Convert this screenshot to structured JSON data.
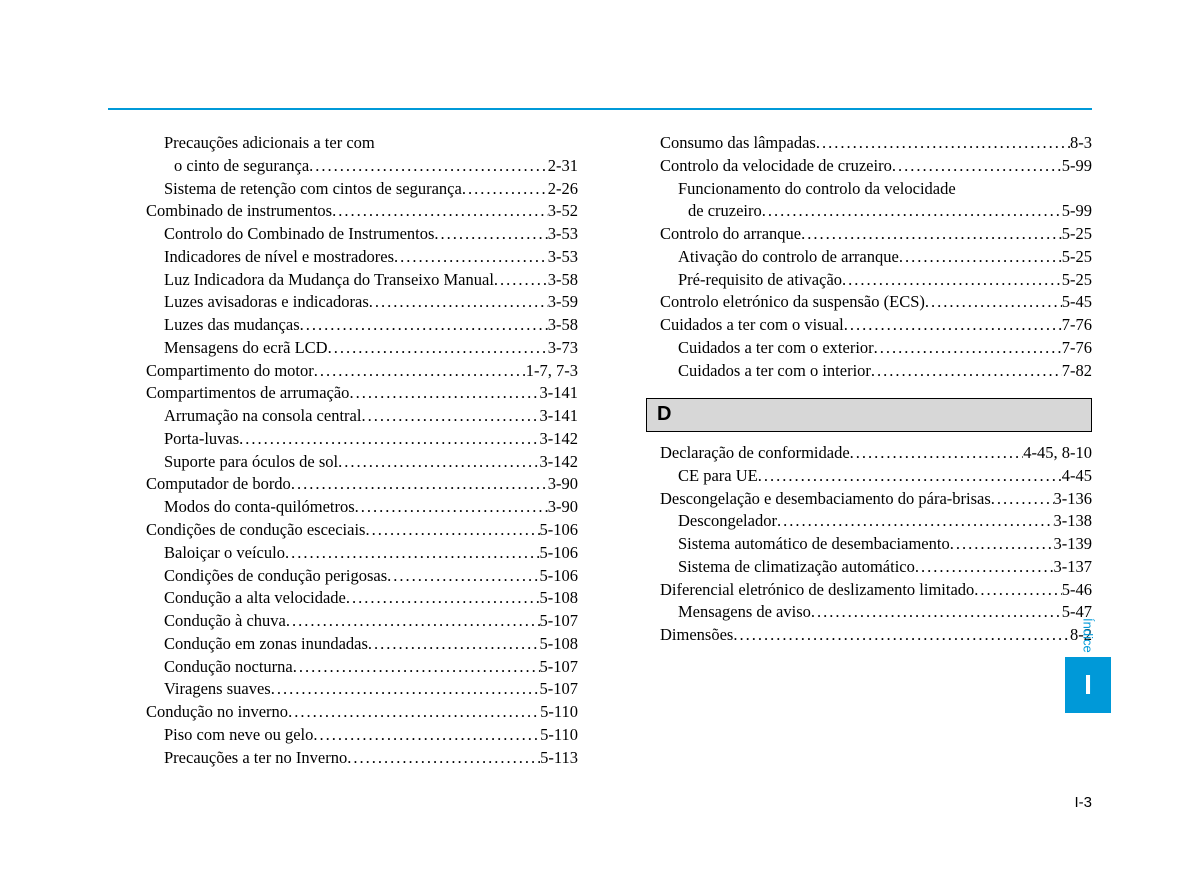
{
  "colors": {
    "accent": "#0099d8",
    "section_bg": "#d7d7d7",
    "text": "#000000",
    "page_bg": "#ffffff"
  },
  "typography": {
    "body_family": "Garamond, Georgia, Times New Roman, serif",
    "body_size_pt": 12,
    "ui_family": "Arial, Helvetica, sans-serif"
  },
  "side_tab": {
    "label": "Índice",
    "letter": "I"
  },
  "page_number": "I-3",
  "left": [
    {
      "level": 2,
      "text": "Precauções adicionais a ter com",
      "page": null
    },
    {
      "level": "cont",
      "text": "o cinto de segurança",
      "page": "2-31"
    },
    {
      "level": 2,
      "text": "Sistema de retenção com cintos de segurança",
      "page": "2-26"
    },
    {
      "level": 1,
      "text": "Combinado de instrumentos",
      "page": "3-52"
    },
    {
      "level": 2,
      "text": "Controlo do Combinado de Instrumentos",
      "page": "3-53"
    },
    {
      "level": 2,
      "text": "Indicadores de nível e mostradores",
      "page": "3-53"
    },
    {
      "level": 2,
      "text": "Luz Indicadora da Mudança do Transeixo Manual",
      "page": "3-58"
    },
    {
      "level": 2,
      "text": "Luzes avisadoras e indicadoras",
      "page": "3-59"
    },
    {
      "level": 2,
      "text": "Luzes das mudanças",
      "page": "3-58"
    },
    {
      "level": 2,
      "text": "Mensagens do ecrã LCD",
      "page": "3-73"
    },
    {
      "level": 1,
      "text": "Compartimento do motor",
      "page": "1-7, 7-3"
    },
    {
      "level": 1,
      "text": "Compartimentos de arrumação",
      "page": "3-141"
    },
    {
      "level": 2,
      "text": "Arrumação na consola central",
      "page": "3-141"
    },
    {
      "level": 2,
      "text": "Porta-luvas",
      "page": "3-142"
    },
    {
      "level": 2,
      "text": "Suporte para óculos de sol",
      "page": "3-142"
    },
    {
      "level": 1,
      "text": "Computador de bordo",
      "page": "3-90"
    },
    {
      "level": 2,
      "text": "Modos do conta-quilómetros",
      "page": "3-90"
    },
    {
      "level": 1,
      "text": "Condições de condução esceciais",
      "page": "5-106"
    },
    {
      "level": 2,
      "text": "Baloiçar o veículo",
      "page": "5-106"
    },
    {
      "level": 2,
      "text": "Condições de condução perigosas",
      "page": "5-106"
    },
    {
      "level": 2,
      "text": "Condução a alta velocidade",
      "page": "5-108"
    },
    {
      "level": 2,
      "text": "Condução à chuva",
      "page": "5-107"
    },
    {
      "level": 2,
      "text": "Condução em zonas inundadas",
      "page": "5-108"
    },
    {
      "level": 2,
      "text": "Condução nocturna",
      "page": "5-107"
    },
    {
      "level": 2,
      "text": "Viragens suaves",
      "page": "5-107"
    },
    {
      "level": 1,
      "text": "Condução no inverno",
      "page": "5-110"
    },
    {
      "level": 2,
      "text": "Piso com neve ou gelo",
      "page": "5-110"
    },
    {
      "level": 2,
      "text": "Precauções a ter no Inverno",
      "page": "5-113"
    }
  ],
  "right_top": [
    {
      "level": 1,
      "text": "Consumo das lâmpadas",
      "page": "8-3"
    },
    {
      "level": 1,
      "text": "Controlo da velocidade de cruzeiro",
      "page": "5-99"
    },
    {
      "level": 2,
      "text": "Funcionamento do controlo da velocidade",
      "page": null
    },
    {
      "level": "cont",
      "text": "de cruzeiro",
      "page": "5-99"
    },
    {
      "level": 1,
      "text": "Controlo do arranque",
      "page": "5-25"
    },
    {
      "level": 2,
      "text": "Ativação do controlo de arranque",
      "page": "5-25"
    },
    {
      "level": 2,
      "text": "Pré-requisito de ativação",
      "page": "5-25"
    },
    {
      "level": 1,
      "text": "Controlo eletrónico da suspensão (ECS)",
      "page": "5-45"
    },
    {
      "level": 1,
      "text": "Cuidados a ter com o visual",
      "page": "7-76"
    },
    {
      "level": 2,
      "text": "Cuidados a ter com o exterior",
      "page": "7-76"
    },
    {
      "level": 2,
      "text": "Cuidados a ter com o interior",
      "page": "7-82"
    }
  ],
  "section_d": "D",
  "right_d": [
    {
      "level": 1,
      "text": "Declaração de conformidade",
      "page": "4-45, 8-10"
    },
    {
      "level": 2,
      "text": "CE para UE",
      "page": "4-45"
    },
    {
      "level": 1,
      "text": "Descongelação e desembaciamento do pára-brisas",
      "page": "3-136"
    },
    {
      "level": 2,
      "text": "Descongelador",
      "page": "3-138"
    },
    {
      "level": 2,
      "text": "Sistema automático de desembaciamento",
      "page": "3-139"
    },
    {
      "level": 2,
      "text": "Sistema de climatização automático",
      "page": "3-137"
    },
    {
      "level": 1,
      "text": "Diferencial eletrónico de deslizamento limitado",
      "page": "5-46"
    },
    {
      "level": 2,
      "text": "Mensagens de aviso",
      "page": "5-47"
    },
    {
      "level": 1,
      "text": "Dimensões",
      "page": "8-2"
    }
  ]
}
